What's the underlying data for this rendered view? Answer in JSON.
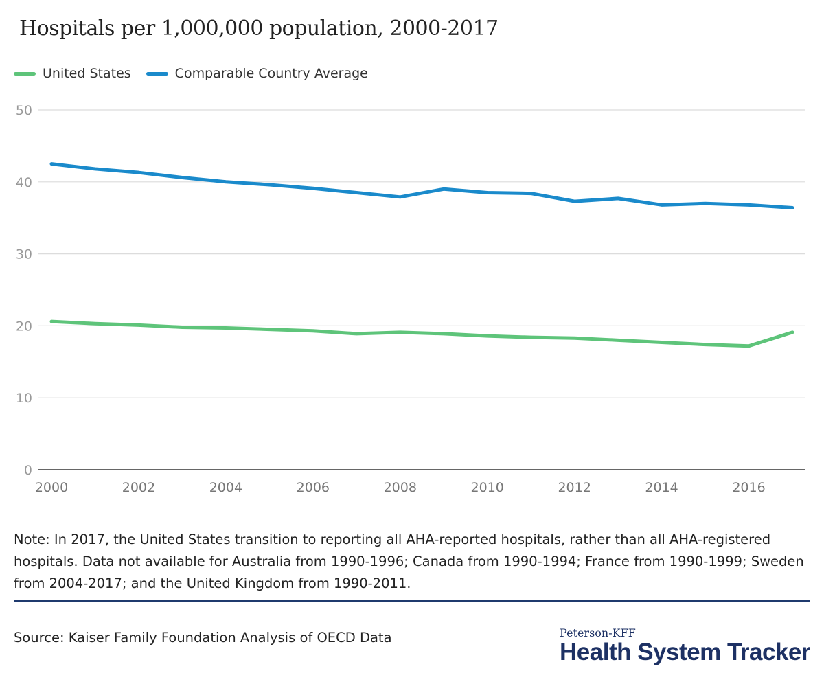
{
  "chart_data": {
    "type": "line",
    "title": "Hospitals per 1,000,000 population, 2000-2017",
    "x": [
      2000,
      2001,
      2002,
      2003,
      2004,
      2005,
      2006,
      2007,
      2008,
      2009,
      2010,
      2011,
      2012,
      2013,
      2014,
      2015,
      2016,
      2017
    ],
    "x_ticks": [
      "2000",
      "2002",
      "2004",
      "2006",
      "2008",
      "2010",
      "2012",
      "2014",
      "2016"
    ],
    "y_ticks": [
      "0",
      "10",
      "20",
      "30",
      "40",
      "50"
    ],
    "ylim": [
      0,
      50
    ],
    "grid": true,
    "legend_position": "top-left",
    "series": [
      {
        "name": "United States",
        "color": "#5ec47a",
        "values": [
          20.6,
          20.3,
          20.1,
          19.8,
          19.7,
          19.5,
          19.3,
          18.9,
          19.1,
          18.9,
          18.6,
          18.4,
          18.3,
          18.0,
          17.7,
          17.4,
          17.2,
          19.1
        ]
      },
      {
        "name": "Comparable Country Average",
        "color": "#1a8acb",
        "values": [
          42.5,
          41.8,
          41.3,
          40.6,
          40.0,
          39.6,
          39.1,
          38.5,
          37.9,
          39.0,
          38.5,
          38.4,
          37.3,
          37.7,
          36.8,
          37.0,
          36.8,
          36.4
        ]
      }
    ]
  },
  "note": "Note: In 2017, the United States transition to reporting all AHA-reported hospitals, rather than all AHA-registered hospitals. Data not available for Australia from 1990-1996; Canada from 1990-1994; France from 1990-1999; Sweden from 2004-2017; and the United Kingdom from 1990-2011.",
  "source": "Source: Kaiser Family Foundation Analysis of OECD Data",
  "logo": {
    "top": "Peterson-KFF",
    "bottom": "Health System Tracker"
  }
}
